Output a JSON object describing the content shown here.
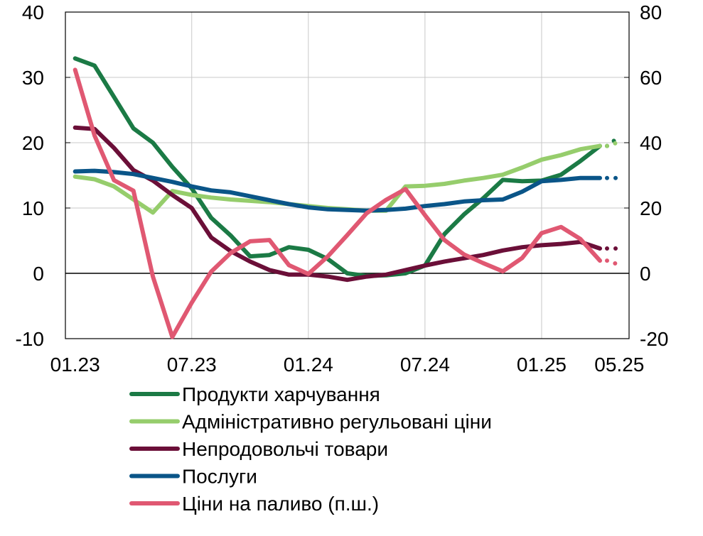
{
  "chart_data": {
    "type": "line",
    "x": [
      "01.23",
      "02.23",
      "03.23",
      "04.23",
      "05.23",
      "06.23",
      "07.23",
      "08.23",
      "09.23",
      "10.23",
      "11.23",
      "12.23",
      "01.24",
      "02.24",
      "03.24",
      "04.24",
      "05.24",
      "06.24",
      "07.24",
      "08.24",
      "09.24",
      "10.24",
      "11.24",
      "12.24",
      "01.25",
      "02.25",
      "03.25",
      "04.25",
      "05.25"
    ],
    "x_tick_labels": [
      "01.23",
      "07.23",
      "01.24",
      "07.24",
      "01.25",
      "05.25"
    ],
    "x_tick_positions": [
      "01.23",
      "07.23",
      "01.24",
      "07.24",
      "01.25",
      "05.25"
    ],
    "ylim": [
      -10,
      40
    ],
    "yticks": [
      -10,
      0,
      10,
      20,
      30,
      40
    ],
    "y2lim": [
      -20,
      80
    ],
    "y2ticks": [
      -20,
      0,
      20,
      40,
      60,
      80
    ],
    "grid": true,
    "legend_position": "bottom",
    "series": [
      {
        "name": "Продукти харчування",
        "axis": "left",
        "color": "#1b7a45",
        "values": [
          32.9,
          31.8,
          27,
          22.2,
          20,
          16.3,
          13,
          8.5,
          5.8,
          2.6,
          2.8,
          4,
          3.6,
          2.2,
          0,
          -0.4,
          -0.3,
          0,
          1.2,
          6,
          9,
          11.5,
          14.3,
          14.1,
          14.2,
          15.1,
          17.2,
          19.5,
          null
        ],
        "forecast_tail": [
          20.9
        ],
        "style": "solid"
      },
      {
        "name": "Адміністративно регульовані ціни",
        "axis": "left",
        "color": "#96cd6c",
        "values": [
          14.8,
          14.4,
          13.3,
          11.3,
          9.3,
          12.6,
          12,
          11.6,
          11.3,
          11.1,
          10.9,
          10.6,
          10.3,
          10,
          9.8,
          9.6,
          9.6,
          13.3,
          13.4,
          13.7,
          14.2,
          14.6,
          15.1,
          16.2,
          17.4,
          18.1,
          19,
          19.5,
          null
        ],
        "forecast_tail": [
          20.1
        ],
        "style": "solid"
      },
      {
        "name": "Непродовольчі товари",
        "axis": "left",
        "color": "#6b0f38",
        "values": [
          22.3,
          22.1,
          19.2,
          15.8,
          14.2,
          12,
          10,
          5.5,
          3.4,
          1.8,
          0.5,
          -0.2,
          -0.2,
          -0.5,
          -1,
          -0.5,
          -0.2,
          0.5,
          1.2,
          1.8,
          2.3,
          2.8,
          3.5,
          4,
          4.3,
          4.5,
          4.8,
          3.8,
          null
        ],
        "forecast_tail": [
          3.8
        ],
        "style": "solid"
      },
      {
        "name": "Послуги",
        "axis": "left",
        "color": "#0a5588",
        "values": [
          15.6,
          15.7,
          15.5,
          15.2,
          14.6,
          14,
          13.3,
          12.7,
          12.4,
          11.8,
          11.2,
          10.6,
          10.1,
          9.8,
          9.7,
          9.6,
          9.7,
          9.9,
          10.3,
          10.6,
          11,
          11.2,
          11.3,
          12.5,
          14.1,
          14.3,
          14.6,
          14.6,
          null
        ],
        "forecast_tail": [
          14.6
        ],
        "style": "solid"
      },
      {
        "name": "Ціни на паливо (п.ш.)",
        "axis": "right",
        "color": "#e05872",
        "values": [
          62.3,
          42.2,
          28.5,
          25.3,
          -1,
          -19.5,
          -9,
          0.5,
          6.2,
          9.8,
          10.2,
          2.5,
          -0.2,
          5.2,
          11.7,
          18.4,
          22.5,
          25.8,
          17.8,
          10.2,
          5.8,
          3.1,
          0.6,
          4.7,
          12.3,
          14.2,
          10.5,
          3.9,
          null
        ],
        "forecast_tail": [
          2.6
        ],
        "style": "solid"
      }
    ],
    "legend": [
      {
        "label": "Продукти харчування",
        "color": "#1b7a45"
      },
      {
        "label": "Адміністративно регульовані ціни",
        "color": "#96cd6c"
      },
      {
        "label": "Непродовольчі товари",
        "color": "#6b0f38"
      },
      {
        "label": "Послуги",
        "color": "#0a5588"
      },
      {
        "label": "Ціни на паливо (п.ш.)",
        "color": "#e05872"
      }
    ]
  }
}
